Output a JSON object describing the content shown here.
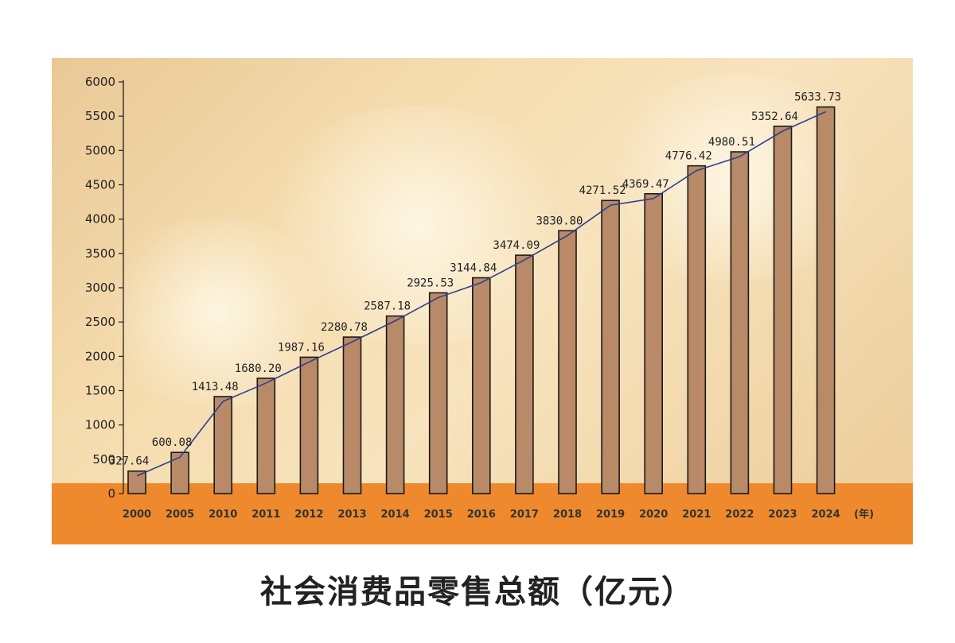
{
  "chart_data": {
    "type": "bar",
    "title": "社会消费品零售总额（亿元）",
    "x_unit_label": "(年)",
    "categories": [
      "2000",
      "2005",
      "2010",
      "2011",
      "2012",
      "2013",
      "2014",
      "2015",
      "2016",
      "2017",
      "2018",
      "2019",
      "2020",
      "2021",
      "2022",
      "2023",
      "2024"
    ],
    "values": [
      327.64,
      600.08,
      1413.48,
      1680.2,
      1987.16,
      2280.78,
      2587.18,
      2925.53,
      3144.84,
      3474.09,
      3830.8,
      4271.52,
      4369.47,
      4776.42,
      4980.51,
      5352.64,
      5633.73
    ],
    "value_labels": [
      "327.64",
      "600.08",
      "1413.48",
      "1680.20",
      "1987.16",
      "2280.78",
      "2587.18",
      "2925.53",
      "3144.84",
      "3474.09",
      "3830.80",
      "4271.52",
      "4369.47",
      "4776.42",
      "4980.51",
      "5352.64",
      "5633.73"
    ],
    "ylim": [
      0,
      6000
    ],
    "yticks": [
      0,
      500,
      1000,
      1500,
      2000,
      2500,
      3000,
      3500,
      4000,
      4500,
      5000,
      5500,
      6000
    ],
    "trend_line": true,
    "grid": false,
    "colors": {
      "bar_fill": "#b98a68",
      "bar_stroke": "#1a1a1a",
      "line": "#2e3f8f",
      "band": "#ee8a2d"
    }
  }
}
